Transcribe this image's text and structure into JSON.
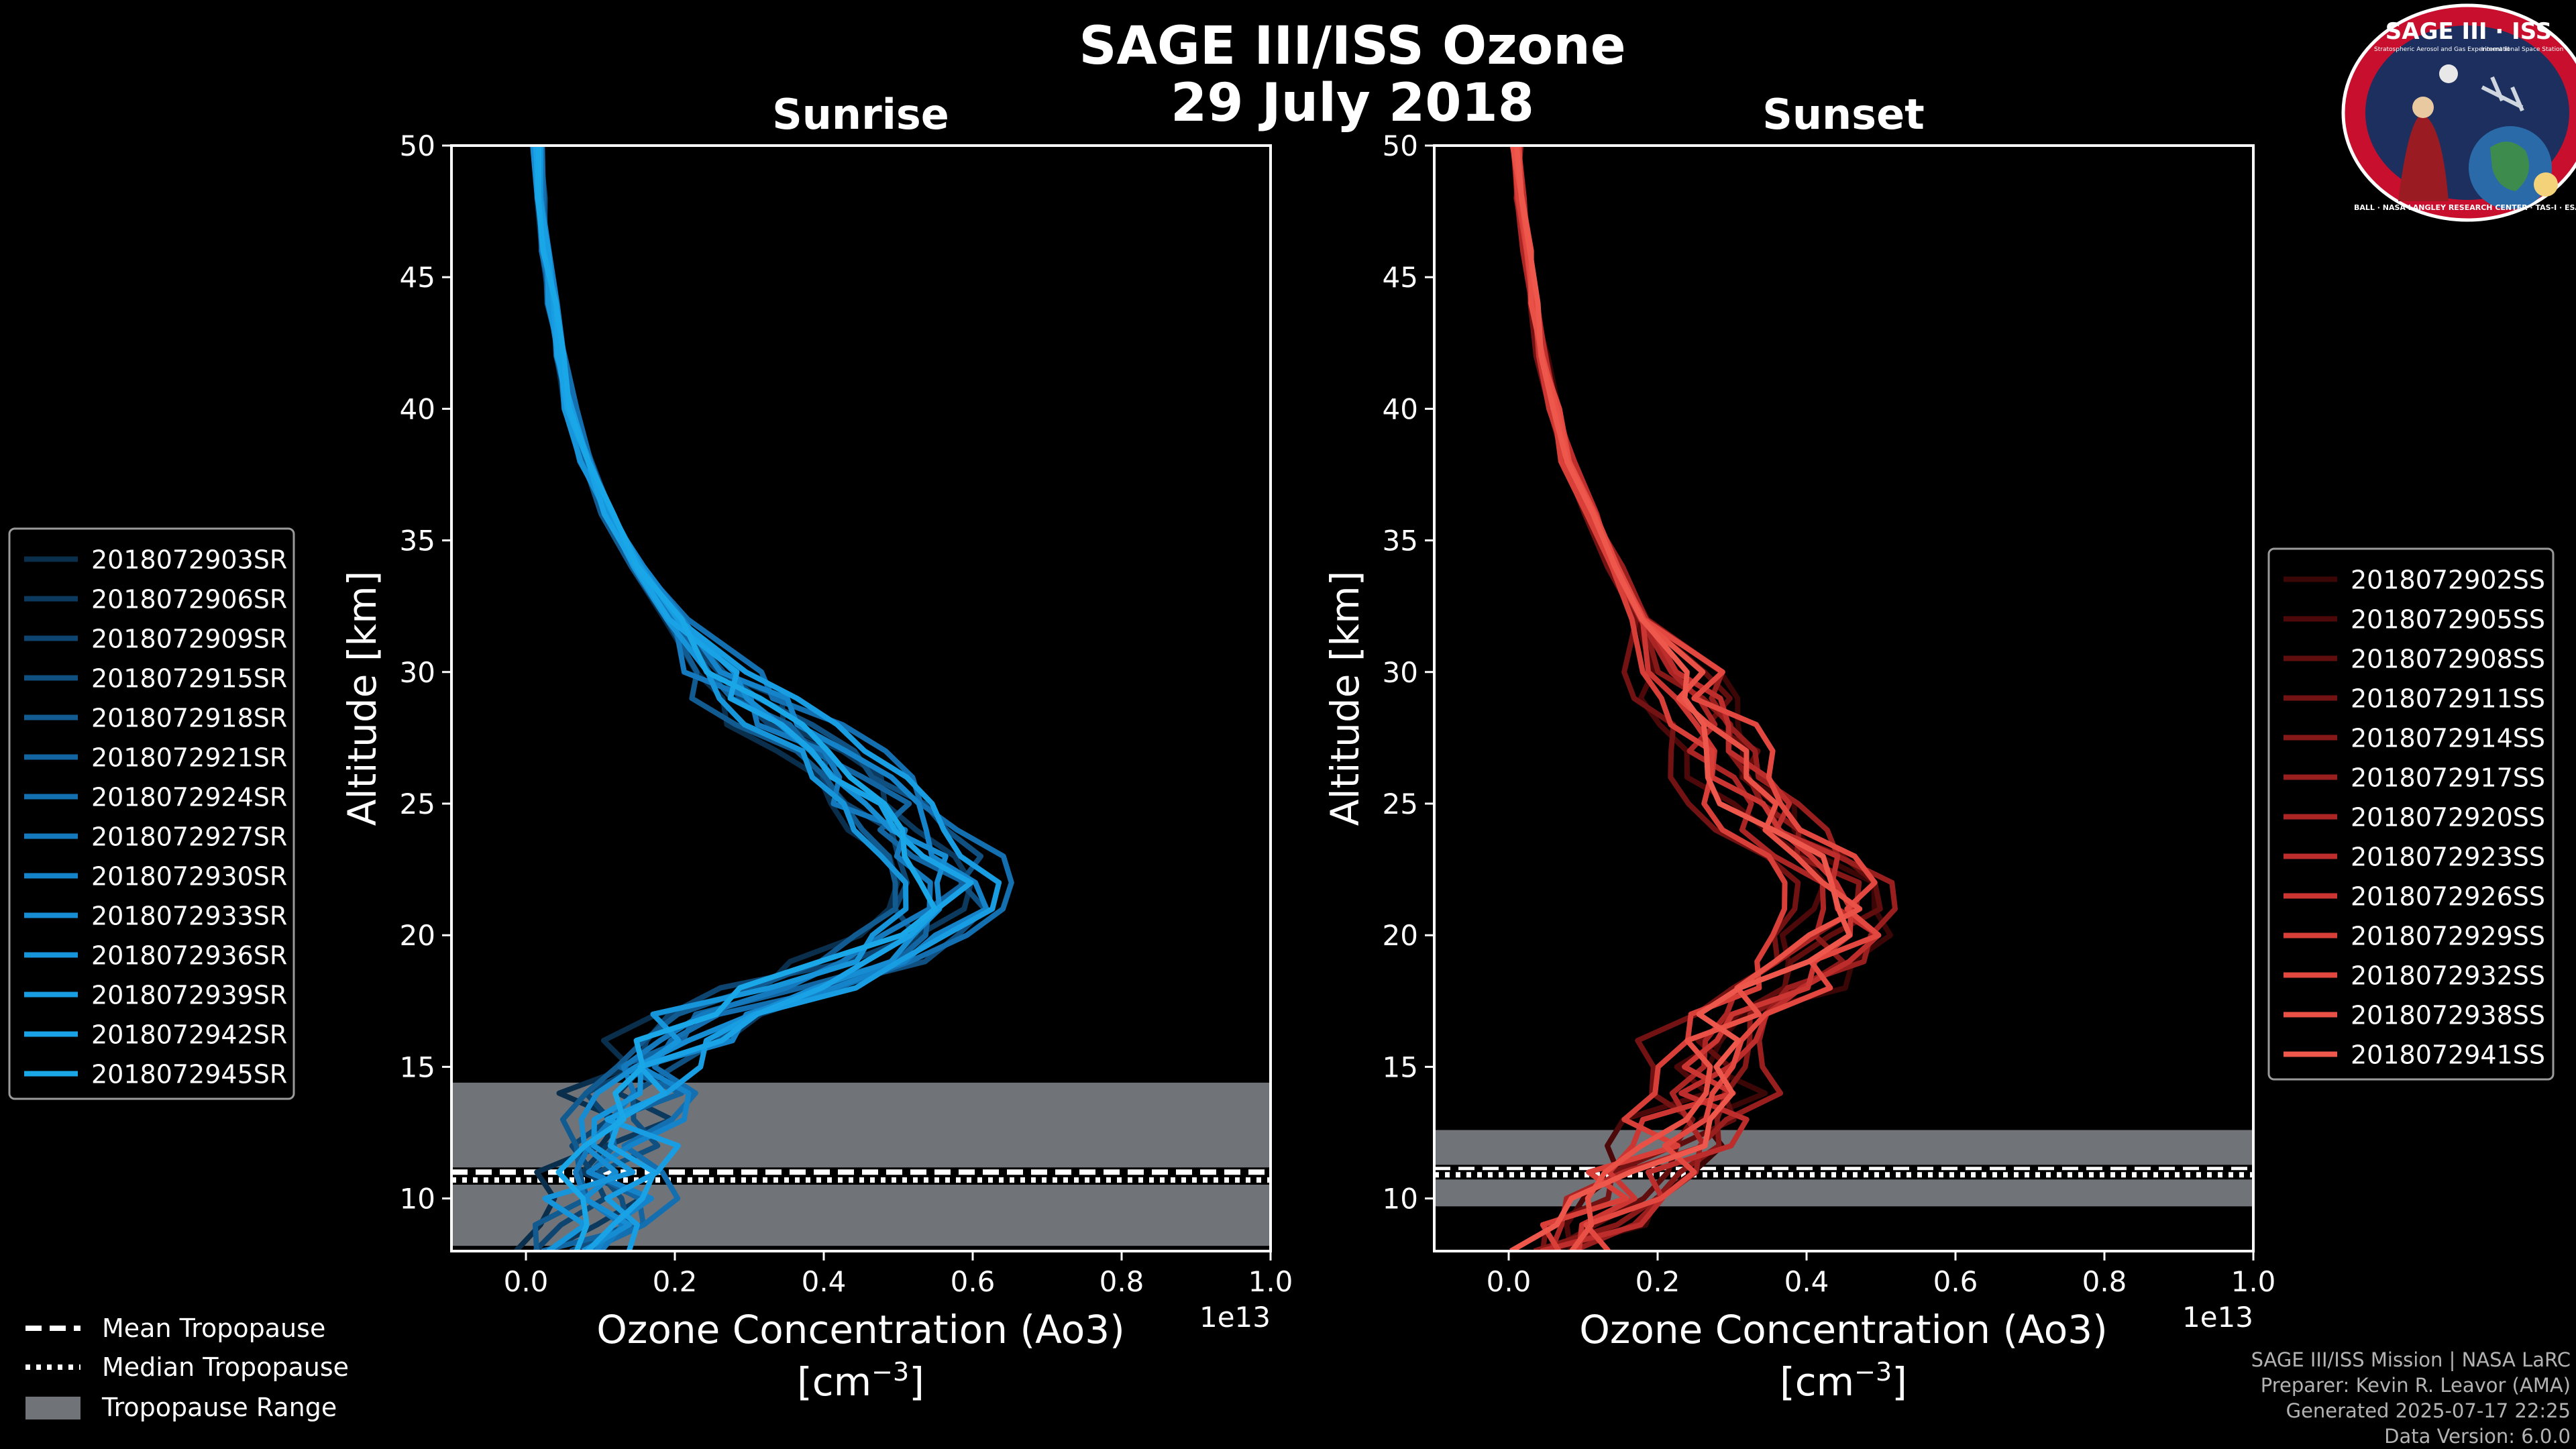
{
  "figure": {
    "title_line1": "SAGE III/ISS Ozone",
    "title_line2": "29 July 2018"
  },
  "logo": {
    "title": "SAGE III · ISS",
    "subtitle": "Stratospheric Aerosol and Gas Experiment III",
    "subtitle2": "International Space Station",
    "ring_text": "BALL · NASA LANGLEY RESEARCH CENTER · TAS-I · ESA",
    "colors": {
      "ring": "#c8102e",
      "inner": "#1c2f5e",
      "text": "#ffffff"
    }
  },
  "chart_data": [
    {
      "type": "line",
      "title": "Sunrise",
      "xlabel": "Ozone Concentration (Ao3)",
      "xunit": "[cm",
      "xunit_exp": "−3",
      "xunit_close": "]",
      "ylabel": "Altitude [km]",
      "x_offset_label": "1e13",
      "xlim": [
        -0.1,
        1.0
      ],
      "ylim": [
        8,
        50
      ],
      "xticks": [
        0.0,
        0.2,
        0.4,
        0.6,
        0.8,
        1.0
      ],
      "xtick_labels": [
        "0.0",
        "0.2",
        "0.4",
        "0.6",
        "0.8",
        "1.0"
      ],
      "yticks": [
        10,
        15,
        20,
        25,
        30,
        35,
        40,
        45,
        50
      ],
      "ytick_labels": [
        "10",
        "15",
        "20",
        "25",
        "30",
        "35",
        "40",
        "45",
        "50"
      ],
      "tropopause": {
        "mean": 11.0,
        "median": 10.7,
        "range": [
          8.2,
          14.4
        ]
      },
      "base_profile": {
        "altitude": [
          8,
          9,
          10,
          11,
          12,
          13,
          14,
          15,
          16,
          17,
          18,
          19,
          20,
          21,
          22,
          23,
          24,
          25,
          26,
          27,
          28,
          29,
          30,
          32,
          34,
          36,
          38,
          40,
          42,
          44,
          46,
          48,
          50
        ],
        "ozone": [
          0.06,
          0.09,
          0.1,
          0.11,
          0.12,
          0.13,
          0.14,
          0.16,
          0.2,
          0.26,
          0.34,
          0.44,
          0.52,
          0.56,
          0.56,
          0.54,
          0.5,
          0.47,
          0.44,
          0.4,
          0.35,
          0.3,
          0.26,
          0.2,
          0.15,
          0.11,
          0.08,
          0.06,
          0.045,
          0.035,
          0.025,
          0.02,
          0.015
        ]
      },
      "series": [
        {
          "name": "2018072903SR",
          "color": "#0a2f4c",
          "shift": -0.04,
          "scale": 0.96
        },
        {
          "name": "2018072906SR",
          "color": "#0c3a5e",
          "shift": 0.02,
          "scale": 1.02
        },
        {
          "name": "2018072909SR",
          "color": "#0e4570",
          "shift": -0.02,
          "scale": 0.98
        },
        {
          "name": "2018072915SR",
          "color": "#105081",
          "shift": 0.03,
          "scale": 1.04
        },
        {
          "name": "2018072918SR",
          "color": "#115b91",
          "shift": -0.03,
          "scale": 0.94
        },
        {
          "name": "2018072921SR",
          "color": "#1265a0",
          "shift": 0.01,
          "scale": 1.0
        },
        {
          "name": "2018072924SR",
          "color": "#136faf",
          "shift": 0.04,
          "scale": 1.06
        },
        {
          "name": "2018072927SR",
          "color": "#1479bd",
          "shift": -0.01,
          "scale": 0.97
        },
        {
          "name": "2018072930SR",
          "color": "#1583c9",
          "shift": 0.02,
          "scale": 1.03
        },
        {
          "name": "2018072933SR",
          "color": "#168cd3",
          "shift": 0.0,
          "scale": 1.01
        },
        {
          "name": "2018072936SR",
          "color": "#1795db",
          "shift": -0.02,
          "scale": 0.95
        },
        {
          "name": "2018072939SR",
          "color": "#189de2",
          "shift": 0.03,
          "scale": 1.05
        },
        {
          "name": "2018072942SR",
          "color": "#19a3e6",
          "shift": 0.01,
          "scale": 0.99
        },
        {
          "name": "2018072945SR",
          "color": "#1aa7e8",
          "shift": -0.01,
          "scale": 1.02
        }
      ]
    },
    {
      "type": "line",
      "title": "Sunset",
      "xlabel": "Ozone Concentration (Ao3)",
      "xunit": "[cm",
      "xunit_exp": "−3",
      "xunit_close": "]",
      "ylabel": "Altitude [km]",
      "x_offset_label": "1e13",
      "xlim": [
        -0.1,
        1.0
      ],
      "ylim": [
        8,
        50
      ],
      "xticks": [
        0.0,
        0.2,
        0.4,
        0.6,
        0.8,
        1.0
      ],
      "xtick_labels": [
        "0.0",
        "0.2",
        "0.4",
        "0.6",
        "0.8",
        "1.0"
      ],
      "yticks": [
        10,
        15,
        20,
        25,
        30,
        35,
        40,
        45,
        50
      ],
      "ytick_labels": [
        "10",
        "15",
        "20",
        "25",
        "30",
        "35",
        "40",
        "45",
        "50"
      ],
      "tropopause": {
        "mean": 11.1,
        "median": 10.9,
        "range": [
          9.7,
          12.6
        ]
      },
      "base_profile": {
        "altitude": [
          8,
          9,
          10,
          11,
          12,
          13,
          14,
          15,
          16,
          17,
          18,
          19,
          20,
          21,
          22,
          23,
          24,
          25,
          26,
          27,
          28,
          29,
          30,
          32,
          34,
          36,
          38,
          40,
          42,
          44,
          46,
          48,
          50
        ],
        "ozone": [
          0.05,
          0.1,
          0.14,
          0.18,
          0.22,
          0.24,
          0.26,
          0.26,
          0.27,
          0.3,
          0.35,
          0.4,
          0.43,
          0.44,
          0.43,
          0.4,
          0.36,
          0.32,
          0.3,
          0.28,
          0.26,
          0.24,
          0.22,
          0.18,
          0.14,
          0.11,
          0.08,
          0.06,
          0.045,
          0.035,
          0.025,
          0.015,
          0.01
        ]
      },
      "series": [
        {
          "name": "2018072902SS",
          "color": "#3a0606",
          "shift": 0.03,
          "scale": 1.05
        },
        {
          "name": "2018072905SS",
          "color": "#4d0909",
          "shift": -0.02,
          "scale": 0.96
        },
        {
          "name": "2018072908SS",
          "color": "#600d0d",
          "shift": 0.02,
          "scale": 1.02
        },
        {
          "name": "2018072911SS",
          "color": "#731212",
          "shift": -0.03,
          "scale": 0.94
        },
        {
          "name": "2018072914SS",
          "color": "#861818",
          "shift": 0.01,
          "scale": 1.0
        },
        {
          "name": "2018072917SS",
          "color": "#991e1e",
          "shift": 0.04,
          "scale": 1.06
        },
        {
          "name": "2018072920SS",
          "color": "#ab2525",
          "shift": -0.01,
          "scale": 0.98
        },
        {
          "name": "2018072923SS",
          "color": "#bc2d2b",
          "shift": 0.02,
          "scale": 1.03
        },
        {
          "name": "2018072926SS",
          "color": "#cb3632",
          "shift": 0.0,
          "scale": 1.0
        },
        {
          "name": "2018072929SS",
          "color": "#d83f38",
          "shift": -0.02,
          "scale": 0.95
        },
        {
          "name": "2018072932SS",
          "color": "#e2483f",
          "shift": 0.03,
          "scale": 1.04
        },
        {
          "name": "2018072938SS",
          "color": "#ea5146",
          "shift": 0.01,
          "scale": 0.99
        },
        {
          "name": "2018072941SS",
          "color": "#ee584c",
          "shift": -0.01,
          "scale": 1.02
        }
      ]
    }
  ],
  "tropopause_legend": {
    "mean_label": "Mean Tropopause",
    "median_label": "Median Tropopause",
    "range_label": "Tropopause Range",
    "range_color": "#707479"
  },
  "credits": {
    "line1": "SAGE III/ISS Mission | NASA LaRC",
    "line2": "Preparer: Kevin R. Leavor (AMA)",
    "line3": "Generated 2025-07-17 22:25",
    "line4": "Data Version: 6.0.0"
  }
}
